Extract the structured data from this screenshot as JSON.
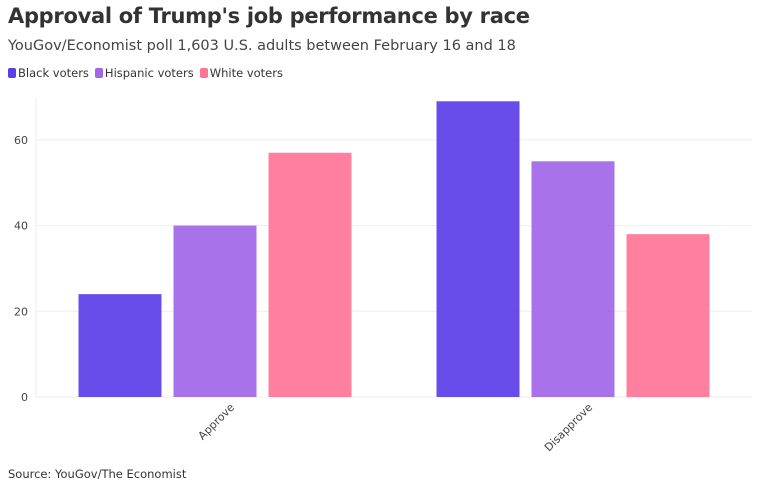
{
  "title": "Approval of Trump's job performance by race",
  "subtitle": "YouGov/Economist poll 1,603 U.S. adults between February 16 and 18",
  "source": "Source: YouGov/The Economist",
  "chart_data": {
    "type": "bar",
    "categories": [
      "Approve",
      "Disapprove"
    ],
    "series": [
      {
        "name": "Black voters",
        "color": "#5b3ee8",
        "values": [
          24,
          69
        ]
      },
      {
        "name": "Hispanic voters",
        "color": "#a066e8",
        "values": [
          40,
          55
        ]
      },
      {
        "name": "White voters",
        "color": "#ff7596",
        "values": [
          57,
          38
        ]
      }
    ],
    "yticks": [
      0,
      20,
      40,
      60
    ],
    "ylim": [
      0,
      70
    ],
    "grid": true,
    "legend": "top-left",
    "xlabel": "",
    "ylabel": ""
  }
}
